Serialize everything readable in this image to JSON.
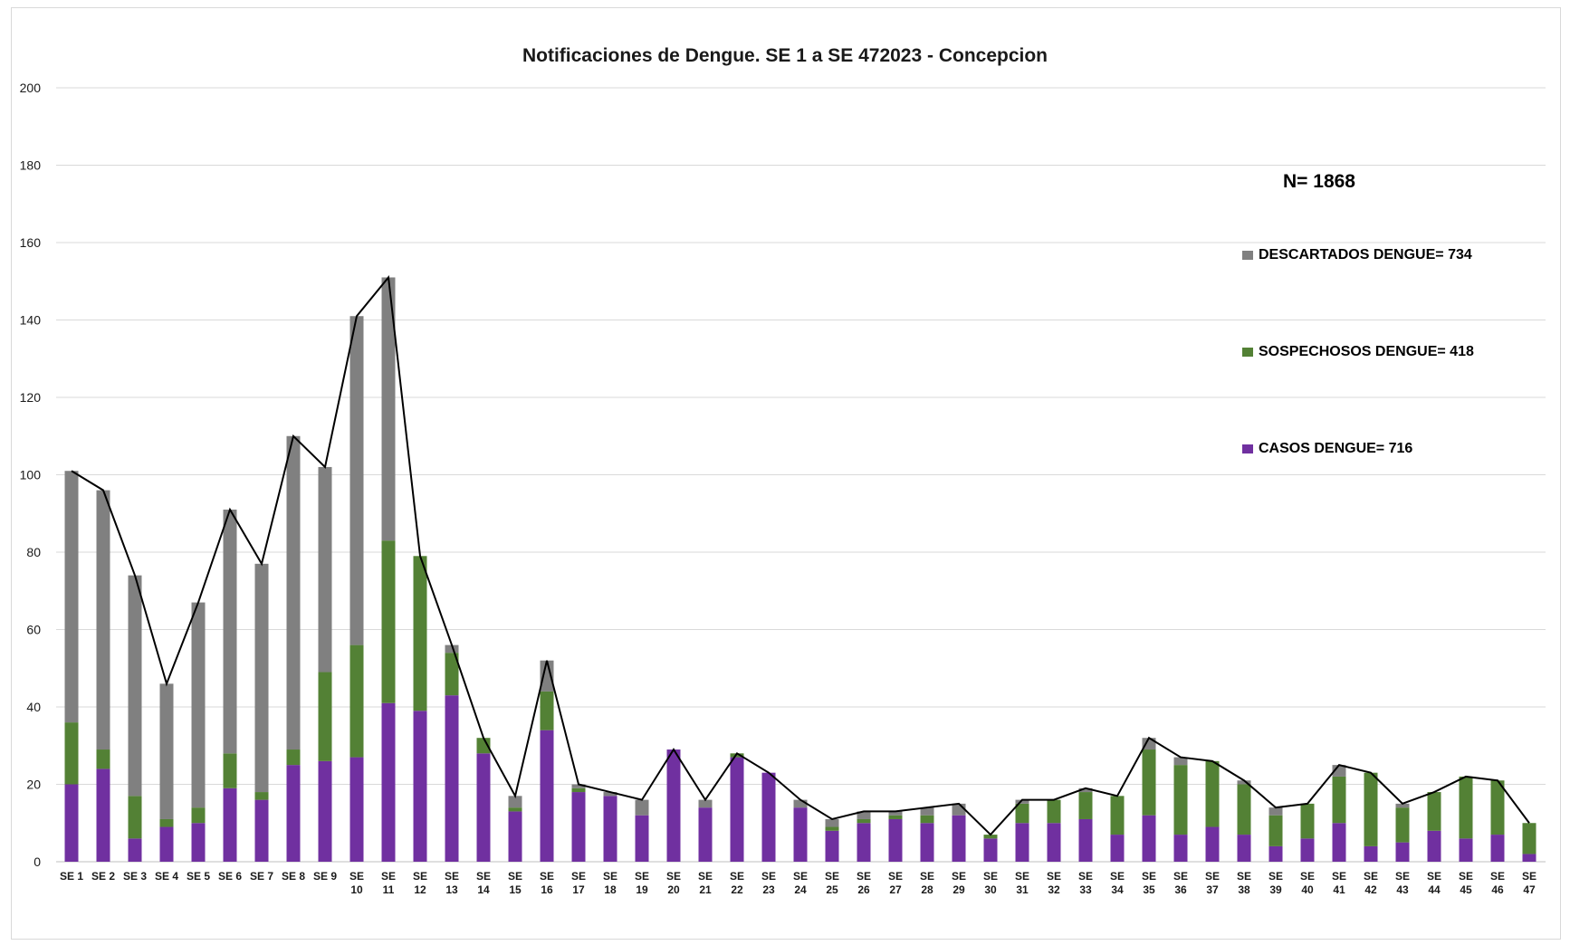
{
  "chart_data": {
    "type": "bar",
    "stacked": true,
    "title": "Notificaciones de Dengue. SE 1 a SE 472023 - Concepcion",
    "annotation": "N= 1868",
    "ylim": [
      0,
      200
    ],
    "yticks": [
      0,
      20,
      40,
      60,
      80,
      100,
      120,
      140,
      160,
      180,
      200
    ],
    "grid": true,
    "legend_position": "right",
    "categories": [
      "SE 1",
      "SE 2",
      "SE 3",
      "SE 4",
      "SE 5",
      "SE 6",
      "SE 7",
      "SE 8",
      "SE 9",
      "SE 10",
      "SE 11",
      "SE 12",
      "SE 13",
      "SE 14",
      "SE 15",
      "SE 16",
      "SE 17",
      "SE 18",
      "SE 19",
      "SE 20",
      "SE 21",
      "SE 22",
      "SE 23",
      "SE 24",
      "SE 25",
      "SE 26",
      "SE 27",
      "SE 28",
      "SE 29",
      "SE 30",
      "SE 31",
      "SE 32",
      "SE 33",
      "SE 34",
      "SE 35",
      "SE 36",
      "SE 37",
      "SE 38",
      "SE 39",
      "SE 40",
      "SE 41",
      "SE 42",
      "SE 43",
      "SE 44",
      "SE 45",
      "SE 46",
      "SE 47"
    ],
    "series": [
      {
        "name": "CASOS DENGUE= 716",
        "color": "#7030a0",
        "values": [
          20,
          24,
          6,
          9,
          10,
          19,
          16,
          25,
          26,
          27,
          41,
          39,
          43,
          28,
          13,
          34,
          18,
          17,
          12,
          29,
          14,
          27,
          23,
          14,
          8,
          10,
          11,
          10,
          12,
          6,
          10,
          10,
          11,
          7,
          12,
          7,
          9,
          7,
          4,
          6,
          10,
          4,
          5,
          8,
          6,
          7,
          2
        ]
      },
      {
        "name": "SOSPECHOSOS DENGUE= 418",
        "color": "#538135",
        "values": [
          16,
          5,
          11,
          2,
          4,
          9,
          2,
          4,
          23,
          29,
          42,
          40,
          11,
          4,
          1,
          10,
          1,
          0,
          0,
          0,
          0,
          1,
          0,
          0,
          1,
          1,
          1,
          2,
          0,
          1,
          5,
          6,
          7,
          10,
          17,
          18,
          17,
          13,
          8,
          9,
          12,
          19,
          9,
          10,
          16,
          14,
          8
        ]
      },
      {
        "name": "DESCARTADOS DENGUE= 734",
        "color": "#808080",
        "values": [
          65,
          67,
          57,
          35,
          53,
          63,
          59,
          81,
          53,
          85,
          68,
          0,
          2,
          0,
          3,
          8,
          1,
          1,
          4,
          0,
          2,
          0,
          0,
          2,
          2,
          2,
          1,
          2,
          3,
          0,
          1,
          0,
          1,
          0,
          3,
          2,
          0,
          1,
          2,
          0,
          3,
          0,
          1,
          0,
          0,
          0,
          0
        ]
      }
    ],
    "total_line": {
      "color": "#000000",
      "values": [
        101,
        96,
        74,
        46,
        67,
        91,
        77,
        110,
        102,
        141,
        151,
        79,
        56,
        32,
        17,
        52,
        20,
        18,
        16,
        29,
        16,
        28,
        23,
        16,
        11,
        13,
        13,
        14,
        15,
        7,
        16,
        16,
        19,
        17,
        32,
        27,
        26,
        21,
        14,
        15,
        25,
        23,
        15,
        18,
        22,
        21,
        10
      ]
    }
  },
  "legend": {
    "descartados": "DESCARTADOS DENGUE= 734",
    "sospechosos": "SOSPECHOSOS DENGUE= 418",
    "casos": "CASOS DENGUE= 716"
  }
}
